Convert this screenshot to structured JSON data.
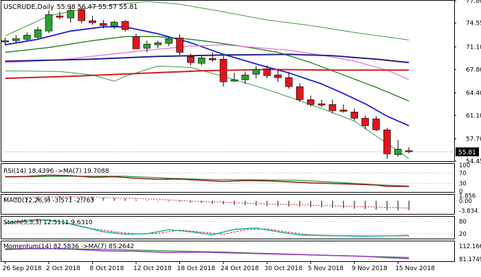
{
  "header": {
    "symbol": "USCRUDE",
    "timeframe": "Daily",
    "ohlc": "55.98 56.47 55.57 55.81"
  },
  "price_badge": "55.81",
  "colors": {
    "bull": "#2e9e2e",
    "bear": "#e0151b",
    "wick": "#000000",
    "bollinger": "#2b8a2b",
    "ema_fast": "#1a1adb",
    "ema_mid": "#1b7d1b",
    "ma_pink": "#e57ad2",
    "ma_navy": "#20208a",
    "ma_red": "#d41a1a",
    "rsi": "#8b1a1a",
    "rsi_ma": "#2e8b2e",
    "macd_hist": "#606060",
    "macd_signal": "#d41a1a",
    "stoch_main": "#20b2aa",
    "stoch_signal": "#d41a1a",
    "momentum": "#9932cc",
    "momentum_ma": "#2e8b2e",
    "grid": "#c8c8c8"
  },
  "chart_data": [
    {
      "type": "candlestick",
      "name": "price",
      "ylim": [
        54.45,
        77.82
      ],
      "y_ticks": [
        "77.80",
        "74.55",
        "71.10",
        "67.80",
        "64.40",
        "61.10",
        "57.70",
        "54.45"
      ],
      "x_labels": [
        "26 Sep 2018",
        "2 Oct 2018",
        "8 Oct 2018",
        "12 Oct 2018",
        "18 Oct 2018",
        "24 Oct 2018",
        "30 Oct 2018",
        "5 Nov 2018",
        "9 Nov 2018",
        "15 Nov 2018"
      ],
      "candles": [
        {
          "o": 71.8,
          "h": 72.4,
          "l": 71.3,
          "c": 72.0
        },
        {
          "o": 72.0,
          "h": 72.8,
          "l": 71.6,
          "c": 72.3
        },
        {
          "o": 72.2,
          "h": 73.2,
          "l": 71.9,
          "c": 72.8
        },
        {
          "o": 72.5,
          "h": 74.0,
          "l": 72.2,
          "c": 73.6
        },
        {
          "o": 73.4,
          "h": 76.4,
          "l": 73.1,
          "c": 75.8
        },
        {
          "o": 75.6,
          "h": 76.2,
          "l": 75.1,
          "c": 75.4
        },
        {
          "o": 75.3,
          "h": 76.8,
          "l": 74.6,
          "c": 76.4
        },
        {
          "o": 76.5,
          "h": 76.8,
          "l": 74.5,
          "c": 74.9
        },
        {
          "o": 74.9,
          "h": 75.6,
          "l": 74.3,
          "c": 74.6
        },
        {
          "o": 74.5,
          "h": 75.0,
          "l": 73.8,
          "c": 74.2
        },
        {
          "o": 74.1,
          "h": 74.9,
          "l": 73.7,
          "c": 74.7
        },
        {
          "o": 74.8,
          "h": 75.0,
          "l": 73.3,
          "c": 73.6
        },
        {
          "o": 72.6,
          "h": 73.0,
          "l": 70.8,
          "c": 70.8
        },
        {
          "o": 70.9,
          "h": 72.0,
          "l": 70.3,
          "c": 71.5
        },
        {
          "o": 71.4,
          "h": 72.0,
          "l": 70.9,
          "c": 71.7
        },
        {
          "o": 71.6,
          "h": 72.6,
          "l": 71.2,
          "c": 72.3
        },
        {
          "o": 72.4,
          "h": 72.9,
          "l": 69.9,
          "c": 70.3
        },
        {
          "o": 69.7,
          "h": 70.1,
          "l": 68.4,
          "c": 68.8
        },
        {
          "o": 68.7,
          "h": 69.8,
          "l": 68.4,
          "c": 69.5
        },
        {
          "o": 69.4,
          "h": 70.3,
          "l": 68.9,
          "c": 69.2
        },
        {
          "o": 69.3,
          "h": 69.8,
          "l": 65.3,
          "c": 66.0
        },
        {
          "o": 66.1,
          "h": 67.3,
          "l": 66.0,
          "c": 66.3
        },
        {
          "o": 66.3,
          "h": 67.5,
          "l": 65.7,
          "c": 67.0
        },
        {
          "o": 67.1,
          "h": 68.3,
          "l": 66.5,
          "c": 67.8
        },
        {
          "o": 67.9,
          "h": 68.4,
          "l": 66.5,
          "c": 66.9
        },
        {
          "o": 67.0,
          "h": 67.8,
          "l": 66.0,
          "c": 66.6
        },
        {
          "o": 66.6,
          "h": 67.3,
          "l": 65.0,
          "c": 65.3
        },
        {
          "o": 65.3,
          "h": 65.8,
          "l": 63.1,
          "c": 63.4
        },
        {
          "o": 63.4,
          "h": 64.0,
          "l": 62.4,
          "c": 62.7
        },
        {
          "o": 62.8,
          "h": 63.4,
          "l": 62.3,
          "c": 62.6
        },
        {
          "o": 62.7,
          "h": 63.4,
          "l": 61.4,
          "c": 61.8
        },
        {
          "o": 61.9,
          "h": 62.7,
          "l": 61.5,
          "c": 61.7
        },
        {
          "o": 61.6,
          "h": 62.1,
          "l": 60.4,
          "c": 60.7
        },
        {
          "o": 60.7,
          "h": 61.1,
          "l": 59.1,
          "c": 59.6
        },
        {
          "o": 60.6,
          "h": 61.0,
          "l": 58.8,
          "c": 59.0
        },
        {
          "o": 59.0,
          "h": 59.3,
          "l": 54.8,
          "c": 55.5
        },
        {
          "o": 55.4,
          "h": 57.5,
          "l": 55.1,
          "c": 56.2
        },
        {
          "o": 55.98,
          "h": 56.47,
          "l": 55.57,
          "c": 55.81
        }
      ],
      "overlays": [
        {
          "key": "bb_upper",
          "color_key": "bollinger",
          "width": 0.9,
          "values": [
            [
              0,
              72.7
            ],
            [
              4,
              75.6
            ],
            [
              8,
              76.9
            ],
            [
              13,
              77.7
            ],
            [
              16,
              77.3
            ],
            [
              20,
              76.2
            ],
            [
              24,
              75.0
            ],
            [
              28,
              74.2
            ],
            [
              32,
              73.2
            ],
            [
              37,
              72.1
            ]
          ]
        },
        {
          "key": "bb_lower",
          "color_key": "bollinger",
          "width": 0.9,
          "values": [
            [
              0,
              67.6
            ],
            [
              5,
              67.5
            ],
            [
              8,
              67.0
            ],
            [
              10,
              66.1
            ],
            [
              11,
              66.8
            ],
            [
              14,
              68.3
            ],
            [
              17,
              68.1
            ],
            [
              20,
              66.8
            ],
            [
              24,
              64.9
            ],
            [
              28,
              62.7
            ],
            [
              32,
              60.3
            ],
            [
              37,
              54.8
            ]
          ]
        },
        {
          "key": "ema_fast",
          "color_key": "ema_fast",
          "width": 1.8,
          "values": [
            [
              0,
              71.4
            ],
            [
              3,
              72.2
            ],
            [
              6,
              73.4
            ],
            [
              9,
              74.0
            ],
            [
              11,
              74.0
            ],
            [
              14,
              73.0
            ],
            [
              17,
              71.7
            ],
            [
              20,
              70.0
            ],
            [
              23,
              68.6
            ],
            [
              26,
              67.3
            ],
            [
              29,
              65.7
            ],
            [
              31,
              64.3
            ],
            [
              33,
              62.8
            ],
            [
              35,
              61.0
            ],
            [
              37,
              59.6
            ]
          ]
        },
        {
          "key": "ema_mid",
          "color_key": "ema_mid",
          "width": 1.3,
          "values": [
            [
              0,
              70.3
            ],
            [
              4,
              71.0
            ],
            [
              8,
              72.0
            ],
            [
              11,
              72.6
            ],
            [
              14,
              72.6
            ],
            [
              17,
              72.2
            ],
            [
              19,
              71.8
            ],
            [
              22,
              71.1
            ],
            [
              25,
              70.3
            ],
            [
              28,
              68.8
            ],
            [
              31,
              67.0
            ],
            [
              34,
              65.2
            ],
            [
              37,
              63.2
            ]
          ]
        },
        {
          "key": "ma_pink",
          "color_key": "ma_pink",
          "width": 1.3,
          "values": [
            [
              0,
              68.8
            ],
            [
              5,
              69.2
            ],
            [
              9,
              69.9
            ],
            [
              13,
              70.6
            ],
            [
              17,
              71.2
            ],
            [
              20,
              71.4
            ],
            [
              23,
              71.0
            ],
            [
              26,
              70.6
            ],
            [
              29,
              69.9
            ],
            [
              32,
              69.0
            ],
            [
              35,
              67.7
            ],
            [
              37,
              66.3
            ]
          ]
        },
        {
          "key": "ma_navy",
          "color_key": "ma_navy",
          "width": 2.0,
          "values": [
            [
              0,
              69.0
            ],
            [
              8,
              69.3
            ],
            [
              14,
              69.7
            ],
            [
              20,
              69.9
            ],
            [
              26,
              70.0
            ],
            [
              30,
              69.8
            ],
            [
              34,
              69.3
            ],
            [
              37,
              68.8
            ]
          ]
        },
        {
          "key": "ma_red",
          "color_key": "ma_red",
          "width": 2.0,
          "values": [
            [
              0,
              66.5
            ],
            [
              6,
              66.8
            ],
            [
              12,
              67.2
            ],
            [
              18,
              67.6
            ],
            [
              24,
              67.8
            ],
            [
              30,
              67.7
            ],
            [
              37,
              67.7
            ]
          ]
        }
      ]
    },
    {
      "type": "line",
      "name": "rsi",
      "label": "RSI(14) 18.4396 ->MA(7) 19.7088",
      "ylim": [
        0,
        100
      ],
      "y_ticks": [
        "100",
        "70",
        "30",
        "0"
      ],
      "levels": [
        70,
        30
      ],
      "series": [
        {
          "key": "rsi_ma",
          "color_key": "rsi_ma",
          "width": 1.3,
          "values": [
            [
              0,
              55
            ],
            [
              6,
              58
            ],
            [
              11,
              58
            ],
            [
              15,
              50
            ],
            [
              19,
              45
            ],
            [
              23,
              44
            ],
            [
              27,
              42
            ],
            [
              31,
              33
            ],
            [
              34,
              25
            ],
            [
              37,
              20
            ]
          ]
        },
        {
          "key": "rsi",
          "color_key": "rsi",
          "width": 1.5,
          "values": [
            [
              0,
              56
            ],
            [
              2,
              57
            ],
            [
              4,
              62
            ],
            [
              6,
              60
            ],
            [
              8,
              54
            ],
            [
              10,
              56
            ],
            [
              12,
              50
            ],
            [
              14,
              46
            ],
            [
              16,
              47
            ],
            [
              18,
              42
            ],
            [
              20,
              38
            ],
            [
              22,
              41
            ],
            [
              24,
              40
            ],
            [
              26,
              36
            ],
            [
              28,
              32
            ],
            [
              30,
              30
            ],
            [
              32,
              27
            ],
            [
              34,
              24
            ],
            [
              35,
              19
            ],
            [
              37,
              18.4
            ]
          ]
        }
      ]
    },
    {
      "type": "bar",
      "name": "macd",
      "label": "MACD(12,26,9) -3.571 -2.763",
      "ylim": [
        -4.7,
        2.0
      ],
      "y_ticks": [
        "1.856",
        "0.00",
        "-3.834"
      ],
      "histogram": [
        0.8,
        1.0,
        1.3,
        1.6,
        1.8,
        1.8,
        1.7,
        1.6,
        1.4,
        1.2,
        1.0,
        0.8,
        0.5,
        0.2,
        -0.1,
        -0.3,
        -0.5,
        -0.7,
        -0.9,
        -1.1,
        -1.3,
        -1.5,
        -1.7,
        -1.9,
        -2.0,
        -2.1,
        -2.2,
        -2.3,
        -2.4,
        -2.5,
        -2.6,
        -2.8,
        -3.0,
        -3.2,
        -3.4,
        -3.6,
        -3.6,
        -3.57
      ],
      "signal": [
        [
          0,
          1.2
        ],
        [
          6,
          1.5
        ],
        [
          12,
          0.9
        ],
        [
          18,
          -0.3
        ],
        [
          24,
          -1.2
        ],
        [
          30,
          -1.9
        ],
        [
          37,
          -2.76
        ]
      ]
    },
    {
      "type": "line",
      "name": "stochastic",
      "label": "Stoch(5,3,3) 12.5111 9.6310",
      "ylim": [
        0,
        100
      ],
      "y_ticks": [
        "80",
        "20"
      ],
      "levels": [
        80,
        20
      ],
      "series": [
        {
          "key": "stoch_signal",
          "color_key": "stoch_signal",
          "width": 1.0,
          "dashed": true,
          "values": [
            [
              0,
              70
            ],
            [
              2,
              80
            ],
            [
              4,
              88
            ],
            [
              6,
              70
            ],
            [
              8,
              45
            ],
            [
              10,
              30
            ],
            [
              12,
              20
            ],
            [
              14,
              22
            ],
            [
              16,
              38
            ],
            [
              18,
              28
            ],
            [
              20,
              18
            ],
            [
              22,
              40
            ],
            [
              24,
              44
            ],
            [
              26,
              28
            ],
            [
              28,
              15
            ],
            [
              30,
              12
            ],
            [
              32,
              11
            ],
            [
              34,
              10
            ],
            [
              37,
              9.6
            ]
          ]
        },
        {
          "key": "stoch_main",
          "color_key": "stoch_main",
          "width": 1.6,
          "values": [
            [
              0,
              72
            ],
            [
              2,
              85
            ],
            [
              3,
              90
            ],
            [
              5,
              80
            ],
            [
              7,
              55
            ],
            [
              9,
              30
            ],
            [
              11,
              18
            ],
            [
              13,
              20
            ],
            [
              15,
              40
            ],
            [
              17,
              30
            ],
            [
              19,
              15
            ],
            [
              21,
              42
            ],
            [
              23,
              48
            ],
            [
              25,
              30
            ],
            [
              27,
              14
            ],
            [
              29,
              12
            ],
            [
              31,
              10
            ],
            [
              33,
              8
            ],
            [
              35,
              10
            ],
            [
              37,
              12.5
            ]
          ]
        }
      ]
    },
    {
      "type": "line",
      "name": "momentum",
      "label": "Momentum(14) 82.5836 ->MA(7) 85.2642",
      "ylim": [
        78,
        122
      ],
      "y_ticks": [
        "112.1661",
        "81.1749"
      ],
      "series": [
        {
          "key": "momentum_ma",
          "color_key": "momentum_ma",
          "width": 1.3,
          "values": [
            [
              0,
              106
            ],
            [
              5,
              106
            ],
            [
              10,
              104
            ],
            [
              15,
              101
            ],
            [
              20,
              98
            ],
            [
              25,
              94
            ],
            [
              30,
              90
            ],
            [
              37,
              85.3
            ]
          ]
        },
        {
          "key": "momentum",
          "color_key": "momentum",
          "width": 1.5,
          "values": [
            [
              0,
              104
            ],
            [
              3,
              107
            ],
            [
              6,
              105
            ],
            [
              9,
              101
            ],
            [
              12,
              100
            ],
            [
              15,
              97
            ],
            [
              18,
              98
            ],
            [
              21,
              96
            ],
            [
              24,
              94
            ],
            [
              27,
              92
            ],
            [
              30,
              90
            ],
            [
              33,
              88
            ],
            [
              35,
              85
            ],
            [
              37,
              82.6
            ]
          ]
        }
      ]
    }
  ]
}
